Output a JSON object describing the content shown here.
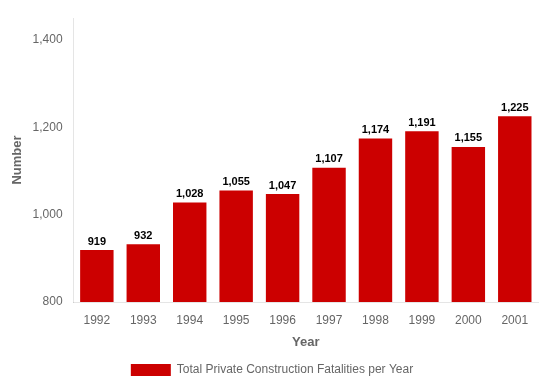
{
  "chart_data": {
    "type": "bar",
    "categories": [
      "1992",
      "1993",
      "1994",
      "1995",
      "1996",
      "1997",
      "1998",
      "1999",
      "2000",
      "2001"
    ],
    "series": [
      {
        "name": "Total Private Construction Fatalities per Year",
        "color": "#cc0000",
        "values": [
          919,
          932,
          1028,
          1055,
          1047,
          1107,
          1174,
          1191,
          1155,
          1225
        ],
        "value_labels": [
          "919",
          "932",
          "1,028",
          "1,055",
          "1,047",
          "1,107",
          "1,174",
          "1,191",
          "1,155",
          "1,225"
        ]
      }
    ],
    "xlabel": "Year",
    "ylabel": "Number",
    "ylim": [
      800,
      1450
    ],
    "yticks": [
      800,
      {
        "value": 1000,
        "label": "1,000"
      },
      {
        "value": 1200,
        "label": "1,200"
      },
      {
        "value": 1400,
        "label": "1,400"
      }
    ],
    "grid": false,
    "legend": "bottom",
    "data_labels": true
  }
}
